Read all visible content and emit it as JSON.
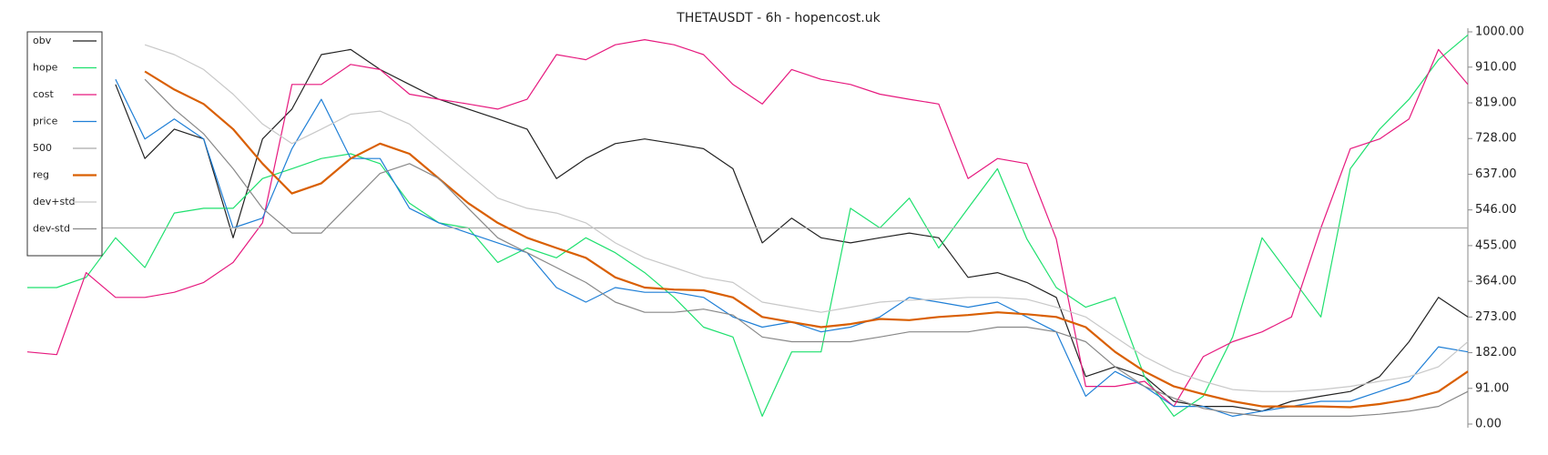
{
  "chart_data": {
    "type": "line",
    "title": "THETAUSDT - 6h - hopencost.uk",
    "ylim": [
      0,
      1000
    ],
    "yticks": [
      {
        "value": 0,
        "label": "0.00"
      },
      {
        "value": 91,
        "label": "91.00"
      },
      {
        "value": 182,
        "label": "182.00"
      },
      {
        "value": 273,
        "label": "273.00"
      },
      {
        "value": 364,
        "label": "364.00"
      },
      {
        "value": 455,
        "label": "455.00"
      },
      {
        "value": 546,
        "label": "546.00"
      },
      {
        "value": 637,
        "label": "637.00"
      },
      {
        "value": 728,
        "label": "728.00"
      },
      {
        "value": 819,
        "label": "819.00"
      },
      {
        "value": 910,
        "label": "910.00"
      },
      {
        "value": 1000,
        "label": "1000.00"
      }
    ],
    "y_axis_side": "right",
    "legend": "upper left",
    "series": [
      {
        "name": "obv",
        "color": "#222222",
        "values": [
          null,
          null,
          null,
          866,
          677,
          752,
          727,
          475,
          727,
          803,
          942,
          955,
          904,
          866,
          828,
          803,
          778,
          752,
          626,
          677,
          715,
          727,
          715,
          702,
          651,
          462,
          525,
          475,
          462,
          475,
          487,
          475,
          374,
          386,
          361,
          323,
          121,
          146,
          121,
          58,
          45,
          45,
          33,
          58,
          71,
          83,
          121,
          210,
          323,
          273
        ]
      },
      {
        "name": "hope",
        "color": "#1ee06e",
        "values": [
          348,
          348,
          374,
          475,
          399,
          538,
          550,
          550,
          626,
          651,
          677,
          689,
          664,
          563,
          513,
          500,
          412,
          449,
          424,
          475,
          437,
          386,
          323,
          247,
          222,
          20,
          184,
          184,
          550,
          500,
          576,
          449,
          550,
          651,
          472,
          348,
          298,
          323,
          121,
          20,
          71,
          222,
          475,
          374,
          273,
          651,
          752,
          828,
          929,
          992
        ]
      },
      {
        "name": "cost",
        "color": "#e6197e",
        "values": [
          184,
          177,
          386,
          323,
          323,
          336,
          361,
          412,
          513,
          866,
          866,
          917,
          904,
          841,
          828,
          816,
          803,
          828,
          942,
          929,
          967,
          980,
          967,
          942,
          866,
          816,
          904,
          879,
          866,
          841,
          828,
          816,
          626,
          677,
          664,
          472,
          96,
          96,
          109,
          45,
          172,
          210,
          235,
          273,
          500,
          702,
          727,
          778,
          955,
          866
        ]
      },
      {
        "name": "price",
        "color": "#1f7fd6",
        "values": [
          null,
          null,
          null,
          879,
          727,
          778,
          727,
          500,
          525,
          702,
          828,
          677,
          677,
          550,
          513,
          487,
          462,
          437,
          348,
          311,
          348,
          336,
          336,
          323,
          273,
          247,
          260,
          235,
          247,
          273,
          323,
          311,
          298,
          311,
          273,
          235,
          71,
          134,
          96,
          45,
          45,
          20,
          33,
          45,
          58,
          58,
          83,
          109,
          197,
          184
        ]
      },
      {
        "name": "500",
        "color": "#aaaaaa",
        "values": [
          500,
          500,
          500,
          500,
          500,
          500,
          500,
          500,
          500,
          500,
          500,
          500,
          500,
          500,
          500,
          500,
          500,
          500,
          500,
          500,
          500,
          500,
          500,
          500,
          500,
          500,
          500,
          500,
          500,
          500,
          500,
          500,
          500,
          500,
          500,
          500,
          500,
          500,
          500,
          500,
          500,
          500,
          500,
          500,
          500,
          500,
          500,
          500,
          500,
          500
        ]
      },
      {
        "name": "reg",
        "color": "#d95f02",
        "values": [
          null,
          null,
          null,
          null,
          899,
          853,
          816,
          752,
          664,
          588,
          614,
          677,
          715,
          689,
          626,
          563,
          513,
          475,
          449,
          424,
          374,
          348,
          343,
          341,
          323,
          273,
          260,
          247,
          255,
          268,
          265,
          273,
          278,
          285,
          280,
          273,
          247,
          184,
          134,
          96,
          76,
          58,
          45,
          45,
          45,
          43,
          51,
          63,
          83,
          134
        ]
      },
      {
        "name": "dev+std",
        "color": "#c8c8c8",
        "values": [
          null,
          null,
          null,
          null,
          967,
          942,
          904,
          841,
          765,
          715,
          752,
          790,
          798,
          765,
          702,
          639,
          576,
          550,
          538,
          513,
          462,
          424,
          399,
          374,
          361,
          311,
          298,
          285,
          298,
          311,
          316,
          318,
          323,
          323,
          318,
          298,
          273,
          222,
          172,
          134,
          109,
          88,
          83,
          83,
          88,
          96,
          109,
          121,
          146,
          210
        ]
      },
      {
        "name": "dev-std",
        "color": "#888888",
        "values": [
          null,
          null,
          null,
          null,
          879,
          803,
          740,
          651,
          550,
          487,
          487,
          563,
          639,
          664,
          626,
          550,
          475,
          437,
          399,
          361,
          311,
          285,
          285,
          293,
          278,
          222,
          210,
          210,
          210,
          222,
          235,
          235,
          235,
          247,
          247,
          235,
          210,
          146,
          96,
          66,
          40,
          28,
          20,
          20,
          20,
          20,
          25,
          33,
          45,
          83
        ]
      }
    ]
  }
}
